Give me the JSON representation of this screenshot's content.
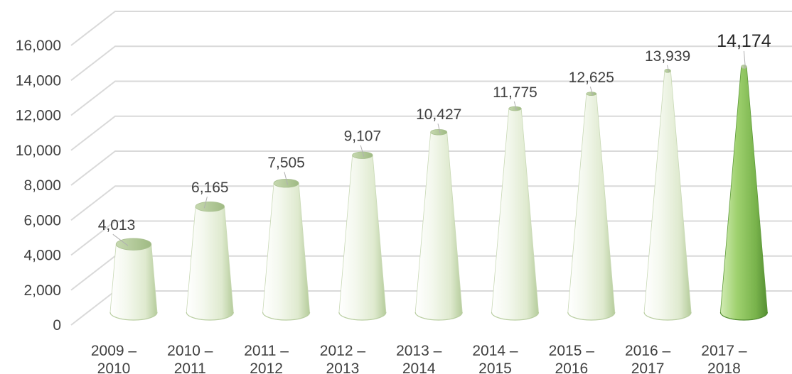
{
  "chart_data": {
    "type": "bar",
    "style": "3d-cone",
    "title": "",
    "xlabel": "",
    "ylabel": "",
    "categories": [
      [
        "2009 –",
        "2010"
      ],
      [
        "2010 –",
        "2011"
      ],
      [
        "2011 –",
        "2012"
      ],
      [
        "2012 –",
        "2013"
      ],
      [
        "2013 –",
        "2014"
      ],
      [
        "2014 –",
        "2015"
      ],
      [
        "2015 –",
        "2016"
      ],
      [
        "2016 –",
        "2017"
      ],
      [
        "2017 –",
        "2018"
      ]
    ],
    "values": [
      4013,
      6165,
      7505,
      9107,
      10427,
      11775,
      12625,
      13939,
      14174
    ],
    "data_labels": [
      "4,013",
      "6,165",
      "7,505",
      "9,107",
      "10,427",
      "11,775",
      "12,625",
      "13,939",
      "14,174"
    ],
    "highlight_index": 8,
    "ylim": [
      0,
      16000
    ],
    "yticks": [
      0,
      2000,
      4000,
      6000,
      8000,
      10000,
      12000,
      14000,
      16000
    ],
    "ytick_labels": [
      "0",
      "2,000",
      "4,000",
      "6,000",
      "8,000",
      "10,000",
      "12,000",
      "14,000",
      "16,000"
    ],
    "grid": true,
    "legend": "none",
    "colors": {
      "bar_light": "#ffffff",
      "bar_mid": "#e3eed5",
      "bar_dark": "#b9cfa0",
      "highlight_light": "#cfeab0",
      "highlight_mid": "#86c05a",
      "highlight_dark": "#5e9a39",
      "grid": "#d9d9d9",
      "text": "#404040"
    }
  }
}
